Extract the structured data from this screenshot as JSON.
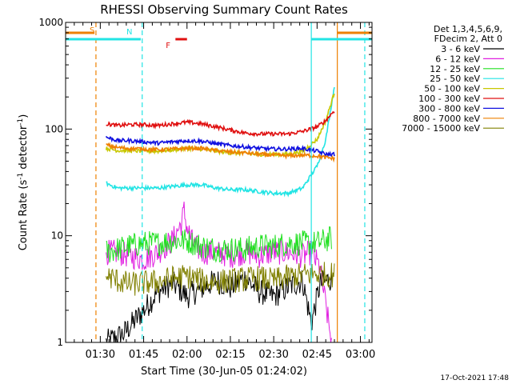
{
  "chart_data": {
    "type": "line",
    "title": "RHESSI Observing Summary Count Rates",
    "xlabel": "Start Time (30-Jun-05 01:24:02)",
    "ylabel": "Count Rate (s⁻¹ detector⁻¹)",
    "ylabel_main": "Count Rate (s",
    "ylabel_sup1": "-1",
    "ylabel_mid": " detector",
    "ylabel_sup2": "-1",
    "ylabel_end": ")",
    "yscale": "log",
    "ylim": [
      1,
      1000
    ],
    "xlim_minutes": [
      78,
      184
    ],
    "ytick_values": [
      1,
      10,
      100,
      1000
    ],
    "ytick_labels": [
      "1",
      "10",
      "100",
      "1000"
    ],
    "xtick_values": [
      90,
      105,
      120,
      135,
      150,
      165,
      180
    ],
    "xtick_labels": [
      "01:30",
      "01:45",
      "02:00",
      "02:15",
      "02:30",
      "02:45",
      "03:00"
    ],
    "legend_header": [
      "Det 1,3,4,5,6,9,",
      "FDecim 2, Att 0"
    ],
    "legend_placement": "top-right outside",
    "timestamp": "17-Oct-2021 17:48",
    "flags": [
      {
        "label": "S",
        "color": "#ee8000",
        "start": 78,
        "end": 88,
        "level": 1.0
      },
      {
        "label": "N",
        "color": "#22e4e4",
        "start": 78,
        "end": 104,
        "level": 0.5
      },
      {
        "label": "F",
        "color": "#e01010",
        "start": 116,
        "end": 120,
        "level": 0.5
      },
      {
        "label": "",
        "color": "#ee8000",
        "start": 172,
        "end": 184,
        "level": 1.0
      },
      {
        "label": "",
        "color": "#22e4e4",
        "start": 163,
        "end": 184,
        "level": 0.5
      }
    ],
    "vlines": [
      {
        "x": 88.5,
        "color": "#ee8000",
        "dash": true
      },
      {
        "x": 104.5,
        "color": "#22e4e4",
        "dash": true
      },
      {
        "x": 163,
        "color": "#22e4e4",
        "dash": false
      },
      {
        "x": 172,
        "color": "#ee8000",
        "dash": false
      },
      {
        "x": 181.5,
        "color": "#22e4e4",
        "dash": true
      }
    ],
    "series": [
      {
        "name": "3 - 6 keV",
        "color": "#000000",
        "x": [
          92,
          98,
          102,
          105,
          110,
          115,
          120,
          125,
          130,
          135,
          140,
          145,
          150,
          155,
          160,
          163,
          166,
          170
        ],
        "y": [
          1.0,
          1.2,
          1.6,
          2.0,
          3.0,
          3.6,
          2.7,
          3.2,
          3.8,
          3.3,
          4.0,
          3.0,
          2.7,
          3.3,
          3.8,
          1.5,
          3.5,
          4.0
        ]
      },
      {
        "name": "6 - 12 keV",
        "color": "#e020e0",
        "x": [
          92,
          95,
          100,
          105,
          110,
          115,
          118,
          119,
          120,
          122,
          125,
          130,
          135,
          140,
          145,
          150,
          155,
          160,
          163,
          166,
          170
        ],
        "y": [
          7.0,
          7.0,
          6.5,
          6.0,
          7.0,
          9.0,
          13.0,
          17.0,
          12.0,
          8.5,
          7.0,
          7.0,
          6.5,
          7.0,
          6.5,
          7.0,
          7.0,
          6.5,
          7.0,
          5.0,
          1.0
        ]
      },
      {
        "name": "12 - 25 keV",
        "color": "#20e020",
        "x": [
          92,
          100,
          105,
          110,
          115,
          120,
          125,
          130,
          135,
          140,
          145,
          150,
          155,
          160,
          165,
          170
        ],
        "y": [
          7.0,
          8.0,
          8.5,
          8.5,
          9.0,
          9.0,
          8.0,
          7.5,
          7.5,
          7.5,
          8.0,
          8.0,
          8.5,
          8.5,
          8.5,
          9.5
        ]
      },
      {
        "name": "25 - 50 keV",
        "color": "#22e4e4",
        "x": [
          92,
          96,
          100,
          105,
          110,
          115,
          120,
          125,
          130,
          135,
          140,
          145,
          150,
          155,
          160,
          165,
          168,
          171
        ],
        "y": [
          31,
          28,
          28,
          28,
          28,
          29,
          30,
          30,
          28,
          27,
          27,
          26,
          25,
          25,
          28,
          45,
          80,
          250
        ]
      },
      {
        "name": "50 - 100 keV",
        "color": "#c8c800",
        "x": [
          92,
          96,
          100,
          105,
          110,
          115,
          120,
          125,
          130,
          135,
          140,
          145,
          150,
          155,
          160,
          165,
          168,
          171
        ],
        "y": [
          66,
          63,
          63,
          62,
          62,
          64,
          66,
          65,
          62,
          60,
          59,
          58,
          58,
          58,
          62,
          80,
          120,
          220
        ]
      },
      {
        "name": "100 - 300 keV",
        "color": "#e01010",
        "x": [
          92,
          96,
          100,
          105,
          110,
          115,
          120,
          125,
          130,
          135,
          140,
          145,
          150,
          155,
          160,
          165,
          168,
          171
        ],
        "y": [
          112,
          108,
          110,
          110,
          108,
          112,
          116,
          112,
          105,
          98,
          92,
          90,
          90,
          90,
          95,
          105,
          120,
          150
        ]
      },
      {
        "name": "300 - 800 keV",
        "color": "#1010e0",
        "x": [
          92,
          96,
          100,
          105,
          110,
          115,
          120,
          125,
          130,
          135,
          140,
          145,
          150,
          155,
          160,
          165,
          168,
          171
        ],
        "y": [
          84,
          78,
          78,
          76,
          74,
          76,
          78,
          77,
          73,
          70,
          68,
          66,
          65,
          65,
          66,
          62,
          58,
          58
        ]
      },
      {
        "name": "800 - 7000 keV",
        "color": "#ee8000",
        "x": [
          92,
          96,
          100,
          105,
          110,
          115,
          120,
          125,
          130,
          135,
          140,
          145,
          150,
          155,
          160,
          165,
          168,
          171
        ],
        "y": [
          71,
          67,
          66,
          65,
          64,
          65,
          66,
          66,
          63,
          61,
          60,
          58,
          57,
          56,
          57,
          56,
          54,
          53
        ]
      },
      {
        "name": "7000 - 15000 keV",
        "color": "#808000",
        "x": [
          92,
          96,
          100,
          105,
          110,
          115,
          120,
          125,
          130,
          135,
          140,
          145,
          150,
          155,
          160,
          165,
          171
        ],
        "y": [
          4.2,
          3.8,
          3.5,
          3.6,
          3.7,
          4.0,
          4.2,
          3.8,
          3.7,
          3.8,
          3.9,
          4.0,
          3.8,
          4.1,
          4.3,
          4.4,
          4.3
        ]
      }
    ]
  }
}
